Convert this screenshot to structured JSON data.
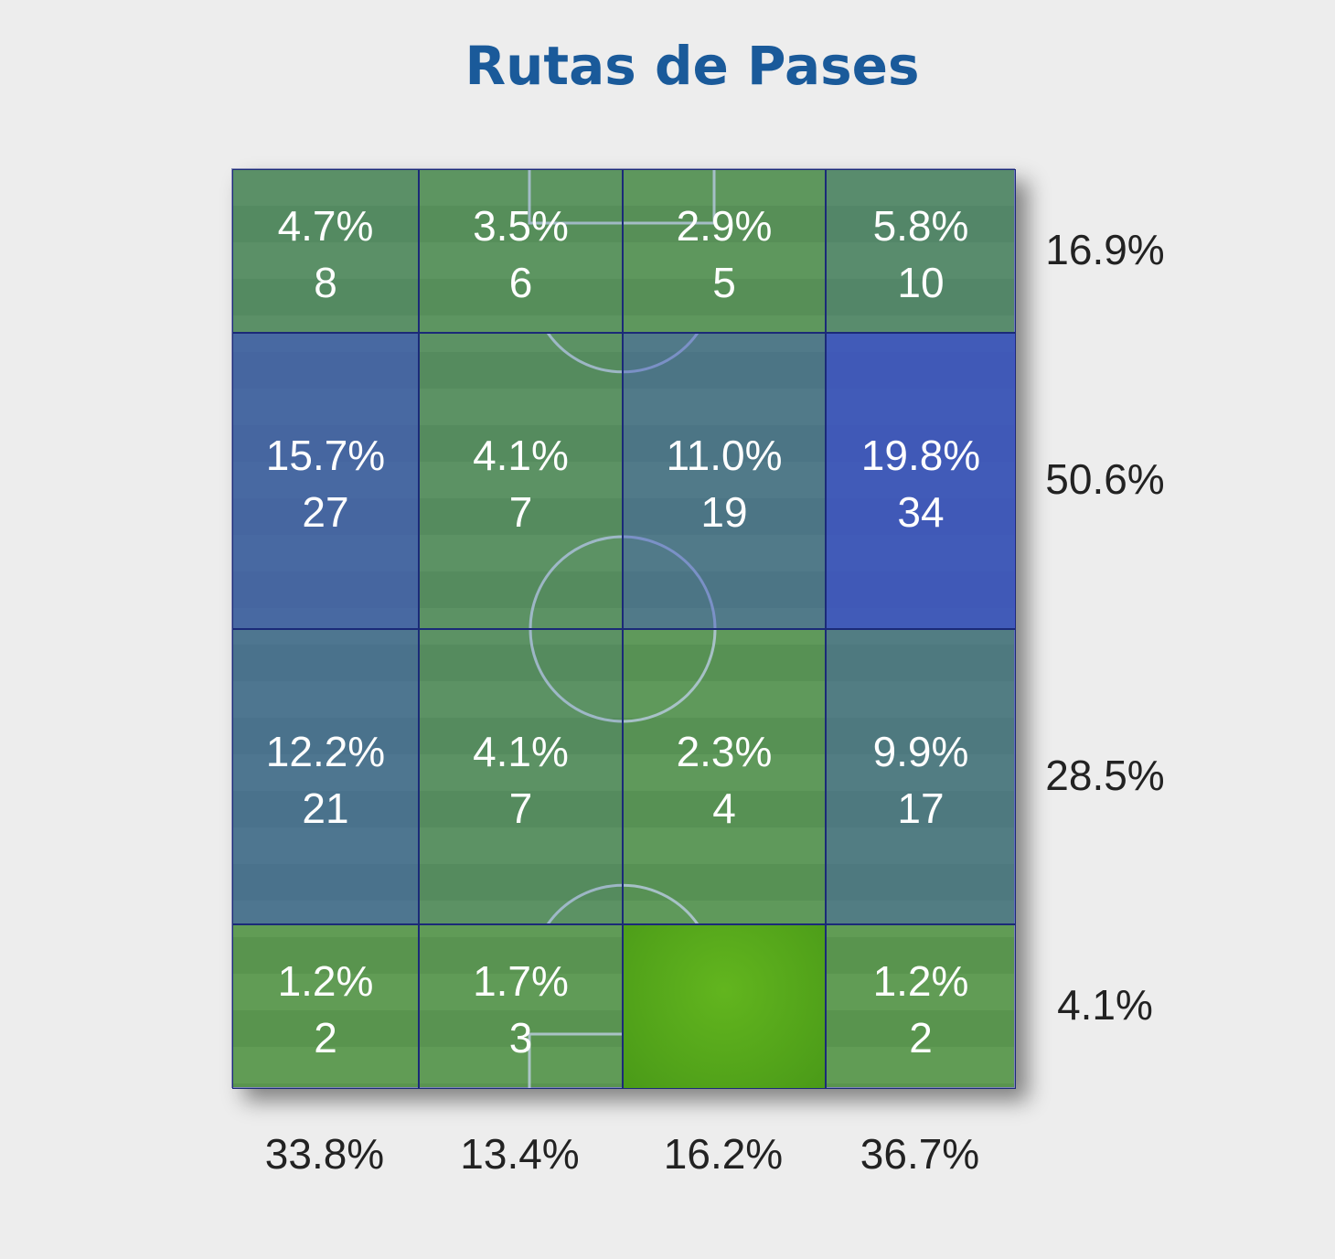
{
  "chart_data": {
    "type": "heatmap",
    "title": "Rutas de Pases",
    "overlay_color": "#3c50c8",
    "pitch_color": "#62a340",
    "cells": [
      [
        {
          "pct": "4.7%",
          "count": "8"
        },
        {
          "pct": "3.5%",
          "count": "6"
        },
        {
          "pct": "2.9%",
          "count": "5"
        },
        {
          "pct": "5.8%",
          "count": "10"
        }
      ],
      [
        {
          "pct": "15.7%",
          "count": "27"
        },
        {
          "pct": "4.1%",
          "count": "7"
        },
        {
          "pct": "11.0%",
          "count": "19"
        },
        {
          "pct": "19.8%",
          "count": "34"
        }
      ],
      [
        {
          "pct": "12.2%",
          "count": "21"
        },
        {
          "pct": "4.1%",
          "count": "7"
        },
        {
          "pct": "2.3%",
          "count": "4"
        },
        {
          "pct": "9.9%",
          "count": "17"
        }
      ],
      [
        {
          "pct": "1.2%",
          "count": "2"
        },
        {
          "pct": "1.7%",
          "count": "3"
        },
        {
          "pct": "",
          "count": ""
        },
        {
          "pct": "1.2%",
          "count": "2"
        }
      ]
    ],
    "row_totals": [
      "16.9%",
      "50.6%",
      "28.5%",
      "4.1%"
    ],
    "column_totals": [
      "33.8%",
      "13.4%",
      "16.2%",
      "36.7%"
    ]
  }
}
